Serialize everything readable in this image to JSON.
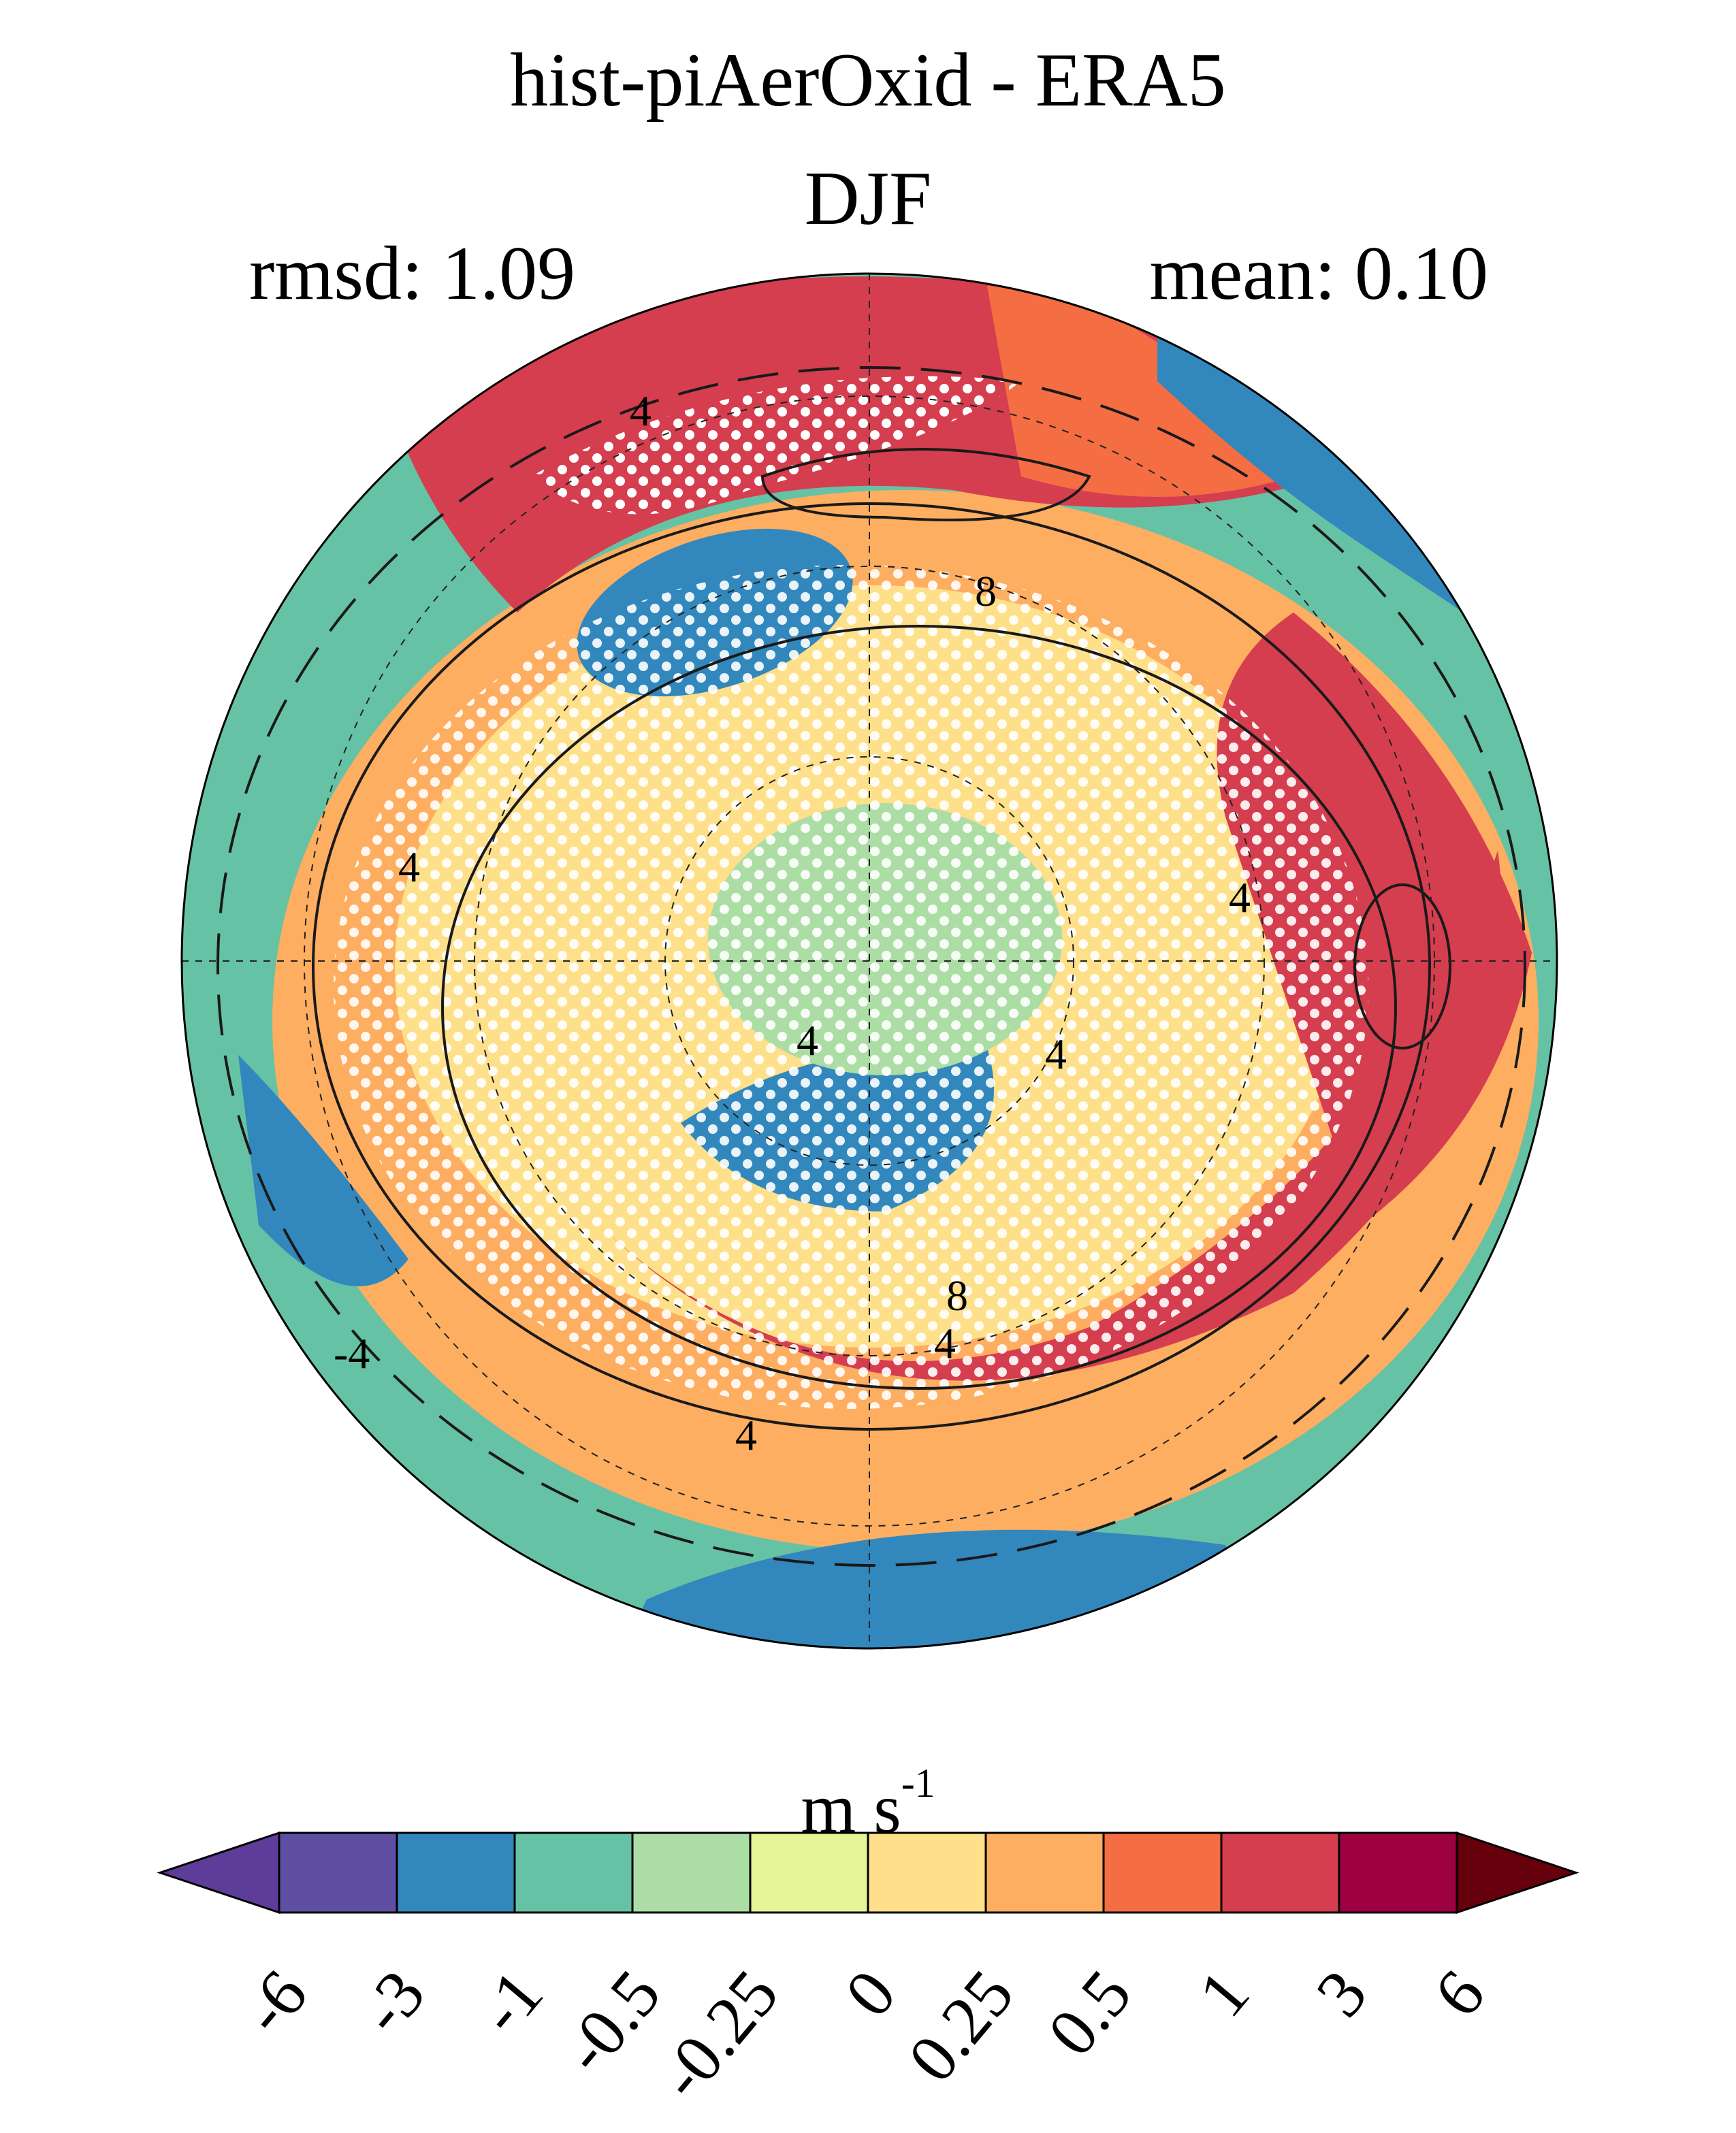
{
  "title": "hist-piAerOxid - ERA5",
  "season": "DJF",
  "stats": {
    "rmsd": "rmsd: 1.09",
    "mean": "mean: 0.10"
  },
  "map": {
    "projection": "polar stereographic, north pole",
    "field_colors": {
      "atlantic_jet_positive": "#d53e4f",
      "pacific_negative": "#3288bd",
      "background": "#66c2a5"
    },
    "contour_labels": [
      "4",
      "8",
      "4",
      "4",
      "-4",
      "4",
      "8",
      "4",
      "4",
      "4"
    ],
    "stippling": "white dots"
  },
  "colorbar": {
    "units": "m s",
    "units_exponent": "-1",
    "ticks": [
      "-6",
      "-3",
      "-1",
      "-0.5",
      "-0.25",
      "0",
      "0.25",
      "0.5",
      "1",
      "3",
      "6"
    ],
    "colors": [
      "#5e4fa2",
      "#3288bd",
      "#66c2a5",
      "#abdda4",
      "#e6f598",
      "#fee08b",
      "#fdae61",
      "#f46d43",
      "#d53e4f",
      "#9e0142"
    ],
    "below_color": "#5e3c99",
    "above_color": "#67000d"
  }
}
